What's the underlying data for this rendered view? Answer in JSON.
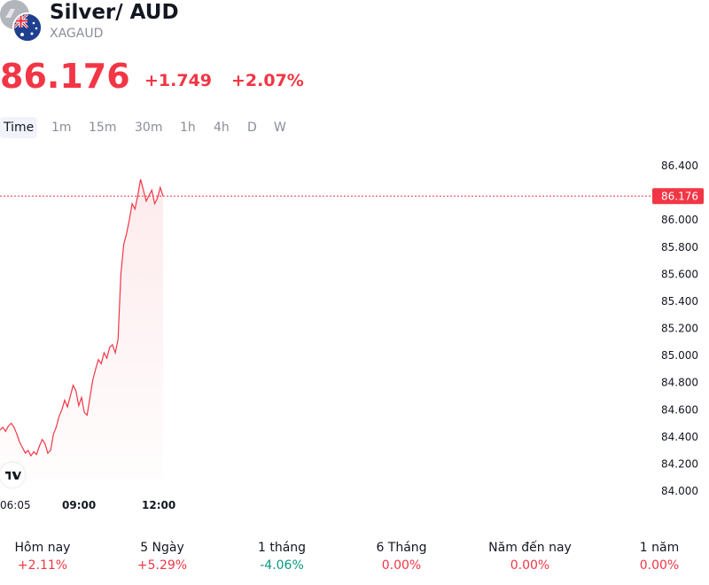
{
  "header": {
    "title": "Silver/ AUD",
    "ticker": "XAGAUD"
  },
  "quote": {
    "price": "86.176",
    "change": "+1.749",
    "change_pct": "+2.07%",
    "color": "#f23645"
  },
  "tabs": [
    {
      "label": "Time",
      "active": true
    },
    {
      "label": "1m",
      "active": false
    },
    {
      "label": "15m",
      "active": false
    },
    {
      "label": "30m",
      "active": false
    },
    {
      "label": "1h",
      "active": false
    },
    {
      "label": "4h",
      "active": false
    },
    {
      "label": "D",
      "active": false
    },
    {
      "label": "W",
      "active": false
    }
  ],
  "chart_data": {
    "type": "area",
    "series": [
      {
        "values": [
          84.45,
          84.47,
          84.44,
          84.48,
          84.5,
          84.47,
          84.42,
          84.36,
          84.32,
          84.28,
          84.3,
          84.26,
          84.29,
          84.27,
          84.33,
          84.38,
          84.35,
          84.28,
          84.3,
          84.42,
          84.47,
          84.55,
          84.6,
          84.67,
          84.62,
          84.7,
          84.78,
          84.74,
          84.63,
          84.69,
          84.58,
          84.56,
          84.69,
          84.82,
          84.9,
          84.97,
          84.94,
          85.02,
          84.98,
          85.06,
          85.08,
          85.02,
          85.12,
          85.6,
          85.82,
          85.9,
          86.0,
          86.12,
          86.08,
          86.18,
          86.3,
          86.22,
          86.14,
          86.18,
          86.22,
          86.12,
          86.16,
          86.24,
          86.176
        ],
        "color": "#f23645"
      }
    ],
    "y_ticks": [
      "86.400",
      "86.000",
      "85.800",
      "85.600",
      "85.400",
      "85.200",
      "85.000",
      "84.800",
      "84.600",
      "84.400",
      "84.200",
      "84.000"
    ],
    "ylim": [
      84.0,
      86.4
    ],
    "x_ticks": [
      "06:05",
      "09:00",
      "12:00"
    ],
    "last_price_label": "86.176",
    "last_price": 86.176
  },
  "periods": [
    {
      "label": "Hôm nay",
      "value": "+2.11%",
      "color": "#f23645"
    },
    {
      "label": "5 Ngày",
      "value": "+5.29%",
      "color": "#f23645"
    },
    {
      "label": "1 tháng",
      "value": "-4.06%",
      "color": "#089981"
    },
    {
      "label": "6 Tháng",
      "value": "0.00%",
      "color": "#f23645"
    },
    {
      "label": "Năm đến nay",
      "value": "0.00%",
      "color": "#f23645"
    },
    {
      "label": "1 năm",
      "value": "0.00%",
      "color": "#f23645"
    }
  ]
}
